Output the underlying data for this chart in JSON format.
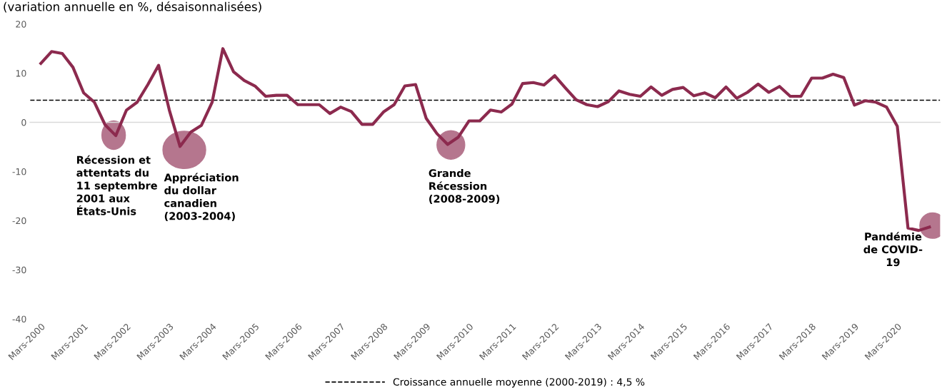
{
  "chart_data": {
    "type": "line",
    "subtitle": "(variation annuelle en %, désaisonnalisées)",
    "categories": [
      "Mars-2000",
      null,
      null,
      null,
      "Mars-2001",
      null,
      null,
      null,
      "Mars-2002",
      null,
      null,
      null,
      "Mars-2003",
      null,
      null,
      null,
      "Mars-2004",
      null,
      null,
      null,
      "Mars-2005",
      null,
      null,
      null,
      "Mars-2006",
      null,
      null,
      null,
      "Mars-2007",
      null,
      null,
      null,
      "Mars-2008",
      null,
      null,
      null,
      "Mars-2009",
      null,
      null,
      null,
      "Mars-2010",
      null,
      null,
      null,
      "Mars-2011",
      null,
      null,
      null,
      "Mars-2012",
      null,
      null,
      null,
      "Mars-2013",
      null,
      null,
      null,
      "Mars-2014",
      null,
      null,
      null,
      "Mars-2015",
      null,
      null,
      null,
      "Mars-2016",
      null,
      null,
      null,
      "Mars-2017",
      null,
      null,
      null,
      "Mars-2018",
      null,
      null,
      null,
      "Mars-2019",
      null,
      null,
      null,
      "Mars-2020",
      null,
      null,
      null
    ],
    "series": [
      {
        "color": "#8c2a4e",
        "values": [
          12.0,
          14.4,
          14.0,
          11.2,
          6.0,
          4.1,
          -0.5,
          -2.7,
          2.5,
          4.1,
          7.7,
          11.6,
          2.5,
          -4.9,
          -2.0,
          -0.6,
          4.1,
          15.0,
          10.3,
          8.5,
          7.4,
          5.3,
          5.5,
          5.5,
          3.6,
          3.6,
          3.6,
          1.8,
          3.1,
          2.2,
          -0.4,
          -0.4,
          2.1,
          3.6,
          7.4,
          7.7,
          0.8,
          -2.3,
          -4.5,
          -3.0,
          0.3,
          0.3,
          2.5,
          2.1,
          3.7,
          7.9,
          8.1,
          7.6,
          9.5,
          7.0,
          4.6,
          3.6,
          3.2,
          4.2,
          6.4,
          5.7,
          5.3,
          7.2,
          5.5,
          6.7,
          7.1,
          5.4,
          6.0,
          5.0,
          7.2,
          4.9,
          6.1,
          7.8,
          6.1,
          7.3,
          5.3,
          5.3,
          9.0,
          9.0,
          9.8,
          9.1,
          3.5,
          4.4,
          4.1,
          3.1,
          -0.8,
          -21.5,
          -22.0,
          -21.3
        ]
      }
    ],
    "ylim": [
      -40,
      20
    ],
    "yticks": [
      -40,
      -30,
      -20,
      -10,
      0,
      10,
      20
    ],
    "ref_lines": [
      {
        "axis": "y",
        "value": 4.5,
        "label": "Croissance annuelle moyenne (2000-2019) : 4,5 %",
        "color": "#000000",
        "line_style": "dashed"
      }
    ],
    "annotations": [
      "Récession et\nattentats du\n11 septembre\n2001 aux\nÉtats-Unis",
      "Appréciation\ndu dollar\ncanadien\n(2003-2004)",
      "Grande\nRécession\n(2008-2009)",
      "Pandémie\nde COVID-\n19"
    ],
    "marker": "none",
    "line_style": "solid"
  }
}
